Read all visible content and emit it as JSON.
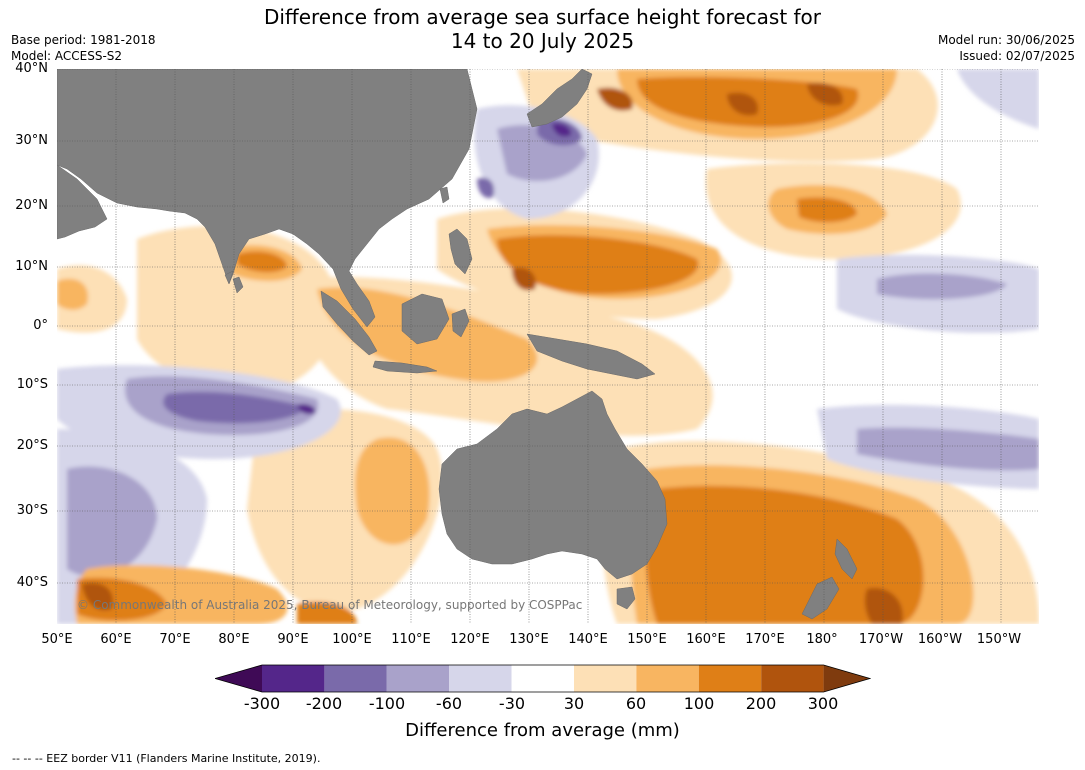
{
  "title_line1": "Difference from average sea surface height forecast for",
  "title_line2": "14 to 20 July 2025",
  "meta": {
    "base_period": "Base period: 1981-2018",
    "model": "Model: ACCESS-S2",
    "model_run": "Model run: 30/06/2025",
    "issued": "Issued: 02/07/2025"
  },
  "lat_labels": [
    "40°N",
    "30°N",
    "20°N",
    "10°N",
    "0°",
    "10°S",
    "20°S",
    "30°S",
    "40°S"
  ],
  "lon_labels": [
    "50°E",
    "60°E",
    "70°E",
    "80°E",
    "90°E",
    "100°E",
    "110°E",
    "120°E",
    "130°E",
    "140°E",
    "150°E",
    "160°E",
    "170°E",
    "180°",
    "170°W",
    "160°W",
    "150°W"
  ],
  "copyright": "© Commonwealth of Australia 2025, Bureau of Meteorology, supported by COSPPac",
  "colorbar": {
    "ticks": [
      "-300",
      "-200",
      "-100",
      "-60",
      "-30",
      "30",
      "60",
      "100",
      "200",
      "300"
    ],
    "colors": [
      "#3f0a56",
      "#54268a",
      "#7a6aaa",
      "#a9a2ca",
      "#d6d6ea",
      "#ffffff",
      "#fde0b6",
      "#f8b561",
      "#df7f17",
      "#b0540d",
      "#7f3b0e"
    ],
    "label": "Difference from average (mm)"
  },
  "footnote": "--  --  -- EEZ border V11 (Flanders Marine Institute, 2019).",
  "colors": {
    "land": "#808080",
    "grid": "#555555"
  }
}
